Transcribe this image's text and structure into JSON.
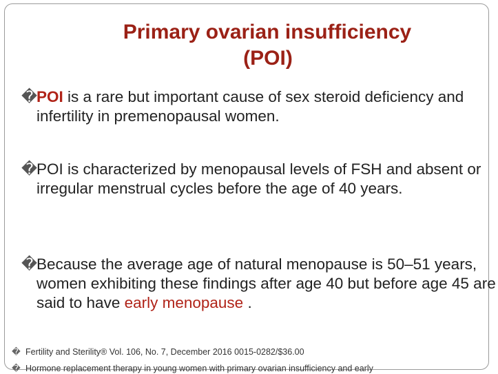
{
  "title": {
    "line1": "Primary ovarian insufficiency",
    "line2": "(POI)"
  },
  "bullets": [
    {
      "marker": "�",
      "lead": "POI",
      "text": " is a rare but important cause of sex steroid deficiency and infertility in premenopausal women."
    },
    {
      "marker": "�",
      "text": "POI is characterized by menopausal levels of FSH and absent or irregular menstrual cycles before the age of 40 years."
    },
    {
      "marker": "�",
      "text_before": "Because the average age of natural menopause is 50–51 years, women exhibiting these findings after age 40 but before age 45 are said to have ",
      "highlight": "early menopause",
      "text_after": " ."
    }
  ],
  "references": [
    {
      "marker": "�",
      "text": "Fertility and Sterility® Vol. 106, No. 7, December 2016 0015-0282/$36.00"
    },
    {
      "marker": "�",
      "text": "Hormone replacement therapy in young women with primary ovarian insufficiency and early"
    }
  ],
  "colors": {
    "accent": "#9b2116",
    "body_text": "#222222"
  }
}
